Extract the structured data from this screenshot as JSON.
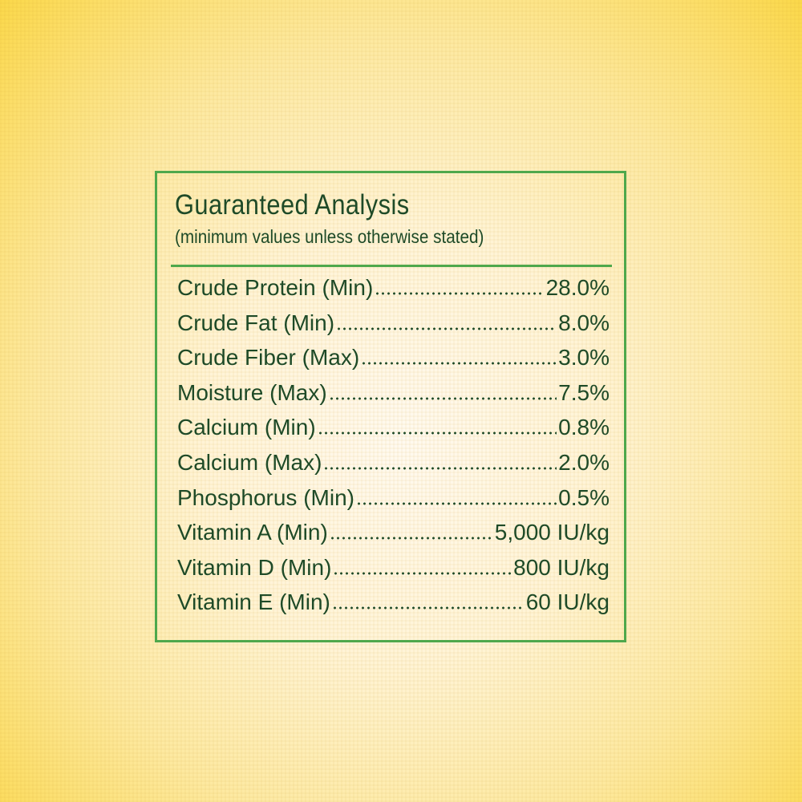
{
  "panel": {
    "title": "Guaranteed Analysis",
    "subtitle": "(minimum values unless otherwise stated)",
    "rows": [
      {
        "label": "Crude Protein (Min)",
        "value": "28.0%"
      },
      {
        "label": "Crude Fat (Min)",
        "value": "8.0%"
      },
      {
        "label": "Crude Fiber (Max)",
        "value": "3.0%"
      },
      {
        "label": "Moisture (Max)",
        "value": "7.5%"
      },
      {
        "label": "Calcium (Min)",
        "value": "0.8%"
      },
      {
        "label": "Calcium (Max)",
        "value": "2.0%"
      },
      {
        "label": "Phosphorus (Min)",
        "value": "0.5%"
      },
      {
        "label": "Vitamin A (Min)",
        "value": "5,000 IU/kg"
      },
      {
        "label": "Vitamin D (Min)",
        "value": "800 IU/kg"
      },
      {
        "label": "Vitamin E (Min)",
        "value": "60 IU/kg"
      }
    ]
  }
}
